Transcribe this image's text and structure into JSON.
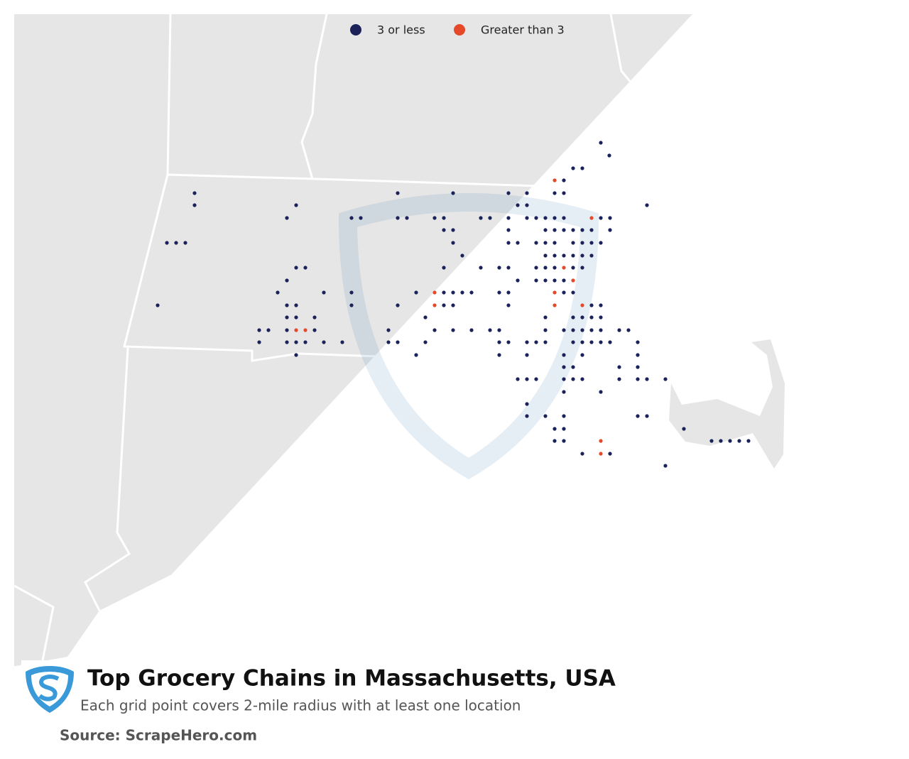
{
  "legend": {
    "items": [
      {
        "label": "3 or less",
        "color": "#1a2259"
      },
      {
        "label": "Greater than 3",
        "color": "#e5492a"
      }
    ]
  },
  "title": "Top Grocery Chains in Massachusetts, USA",
  "subtitle": "Each grid point covers 2-mile radius with at least one location",
  "source": "Source: ScrapeHero.com"
}
